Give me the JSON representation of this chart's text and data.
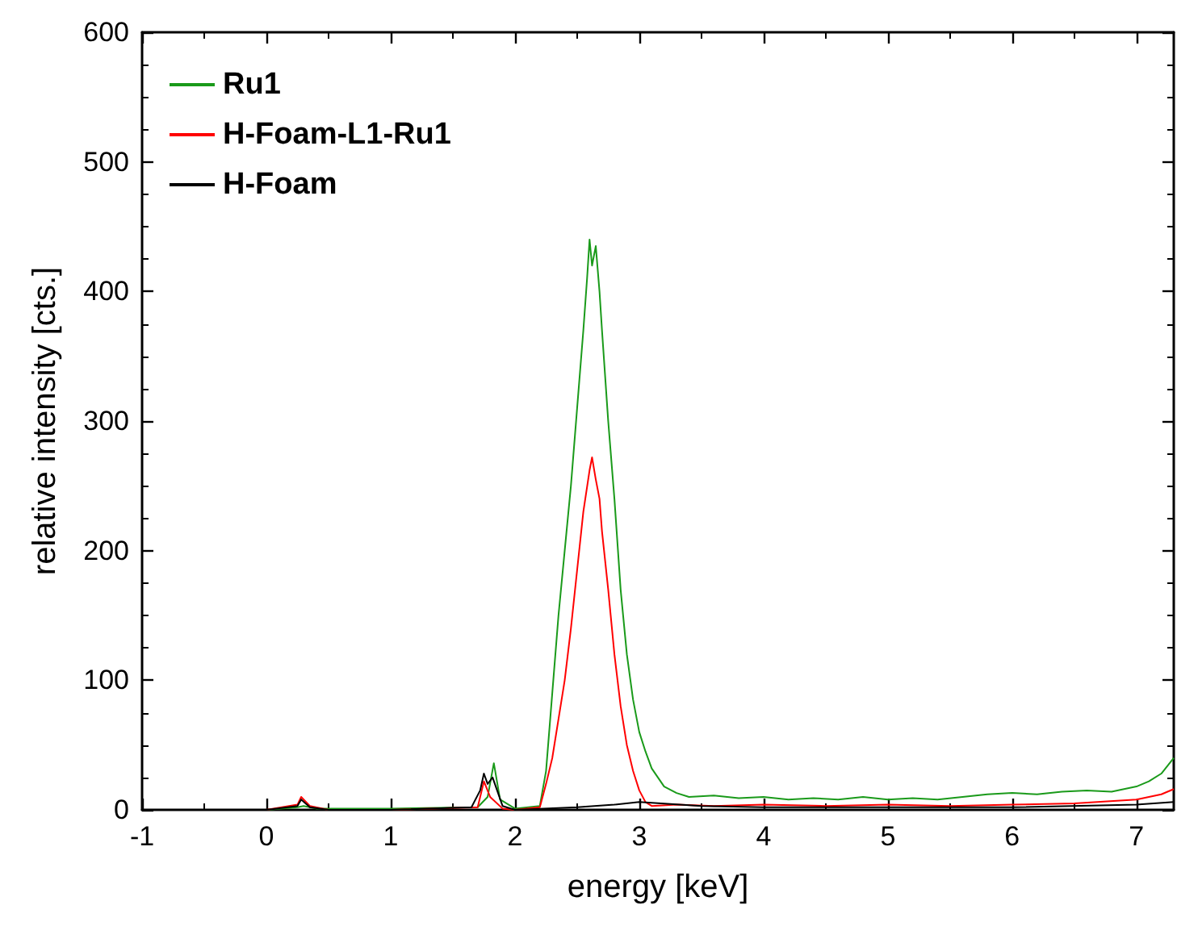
{
  "chart_data": {
    "type": "line",
    "xlabel": "energy [keV]",
    "ylabel": "relative intensity [cts.]",
    "xlim": [
      -1,
      7.3
    ],
    "xticks": [
      -1,
      0,
      1,
      2,
      3,
      4,
      5,
      6,
      7
    ],
    "ylim": [
      0,
      600
    ],
    "yticks": [
      0,
      100,
      200,
      300,
      400,
      500,
      600
    ],
    "grid": false,
    "legend": "top left",
    "marker": "none",
    "line_style": "solid",
    "series": [
      {
        "name": "Ru1",
        "color": "#1a9a1a",
        "x": [
          -1,
          0,
          0.25,
          0.3,
          0.4,
          1,
          1.7,
          1.78,
          1.83,
          1.88,
          2.0,
          2.2,
          2.25,
          2.3,
          2.35,
          2.4,
          2.45,
          2.5,
          2.55,
          2.58,
          2.6,
          2.62,
          2.65,
          2.68,
          2.7,
          2.75,
          2.8,
          2.85,
          2.9,
          2.95,
          3.0,
          3.05,
          3.1,
          3.15,
          3.2,
          3.3,
          3.4,
          3.6,
          3.8,
          4.0,
          4.2,
          4.4,
          4.6,
          4.8,
          5.0,
          5.2,
          5.4,
          5.6,
          5.8,
          6.0,
          6.2,
          6.4,
          6.6,
          6.8,
          7.0,
          7.1,
          7.2,
          7.3
        ],
        "values": [
          0,
          0,
          2,
          3,
          1,
          1,
          2,
          10,
          36,
          8,
          1,
          3,
          30,
          90,
          150,
          200,
          250,
          310,
          370,
          410,
          440,
          420,
          435,
          400,
          370,
          300,
          240,
          170,
          120,
          85,
          60,
          45,
          32,
          25,
          18,
          13,
          10,
          11,
          9,
          10,
          8,
          9,
          8,
          10,
          8,
          9,
          8,
          10,
          12,
          13,
          12,
          14,
          15,
          14,
          18,
          22,
          28,
          40
        ]
      },
      {
        "name": "H-Foam-L1-Ru1",
        "color": "#ff0000",
        "x": [
          -1,
          0,
          0.25,
          0.28,
          0.35,
          0.5,
          1,
          1.7,
          1.75,
          1.8,
          1.9,
          2.0,
          2.2,
          2.25,
          2.3,
          2.35,
          2.4,
          2.45,
          2.5,
          2.55,
          2.6,
          2.62,
          2.65,
          2.68,
          2.7,
          2.75,
          2.8,
          2.85,
          2.9,
          2.95,
          3.0,
          3.05,
          3.1,
          3.3,
          3.6,
          4,
          4.5,
          5,
          5.5,
          6,
          6.5,
          7,
          7.2,
          7.3
        ],
        "values": [
          0,
          0,
          4,
          10,
          3,
          0,
          0,
          2,
          22,
          10,
          1,
          0,
          2,
          20,
          40,
          70,
          100,
          140,
          185,
          230,
          262,
          272,
          255,
          240,
          215,
          170,
          120,
          80,
          50,
          30,
          15,
          6,
          3,
          4,
          3,
          4,
          3,
          4,
          3,
          4,
          5,
          8,
          12,
          16
        ]
      },
      {
        "name": "H-Foam",
        "color": "#000000",
        "x": [
          -1,
          0,
          0.25,
          0.28,
          0.35,
          0.5,
          1,
          1.65,
          1.72,
          1.75,
          1.78,
          1.82,
          1.9,
          2.0,
          2.5,
          2.8,
          3.0,
          3.5,
          4,
          5,
          6,
          7,
          7.3
        ],
        "values": [
          0,
          0,
          3,
          8,
          2,
          0,
          0,
          2,
          15,
          28,
          20,
          25,
          3,
          0,
          2,
          4,
          6,
          3,
          2,
          2,
          2,
          4,
          6
        ]
      }
    ]
  }
}
